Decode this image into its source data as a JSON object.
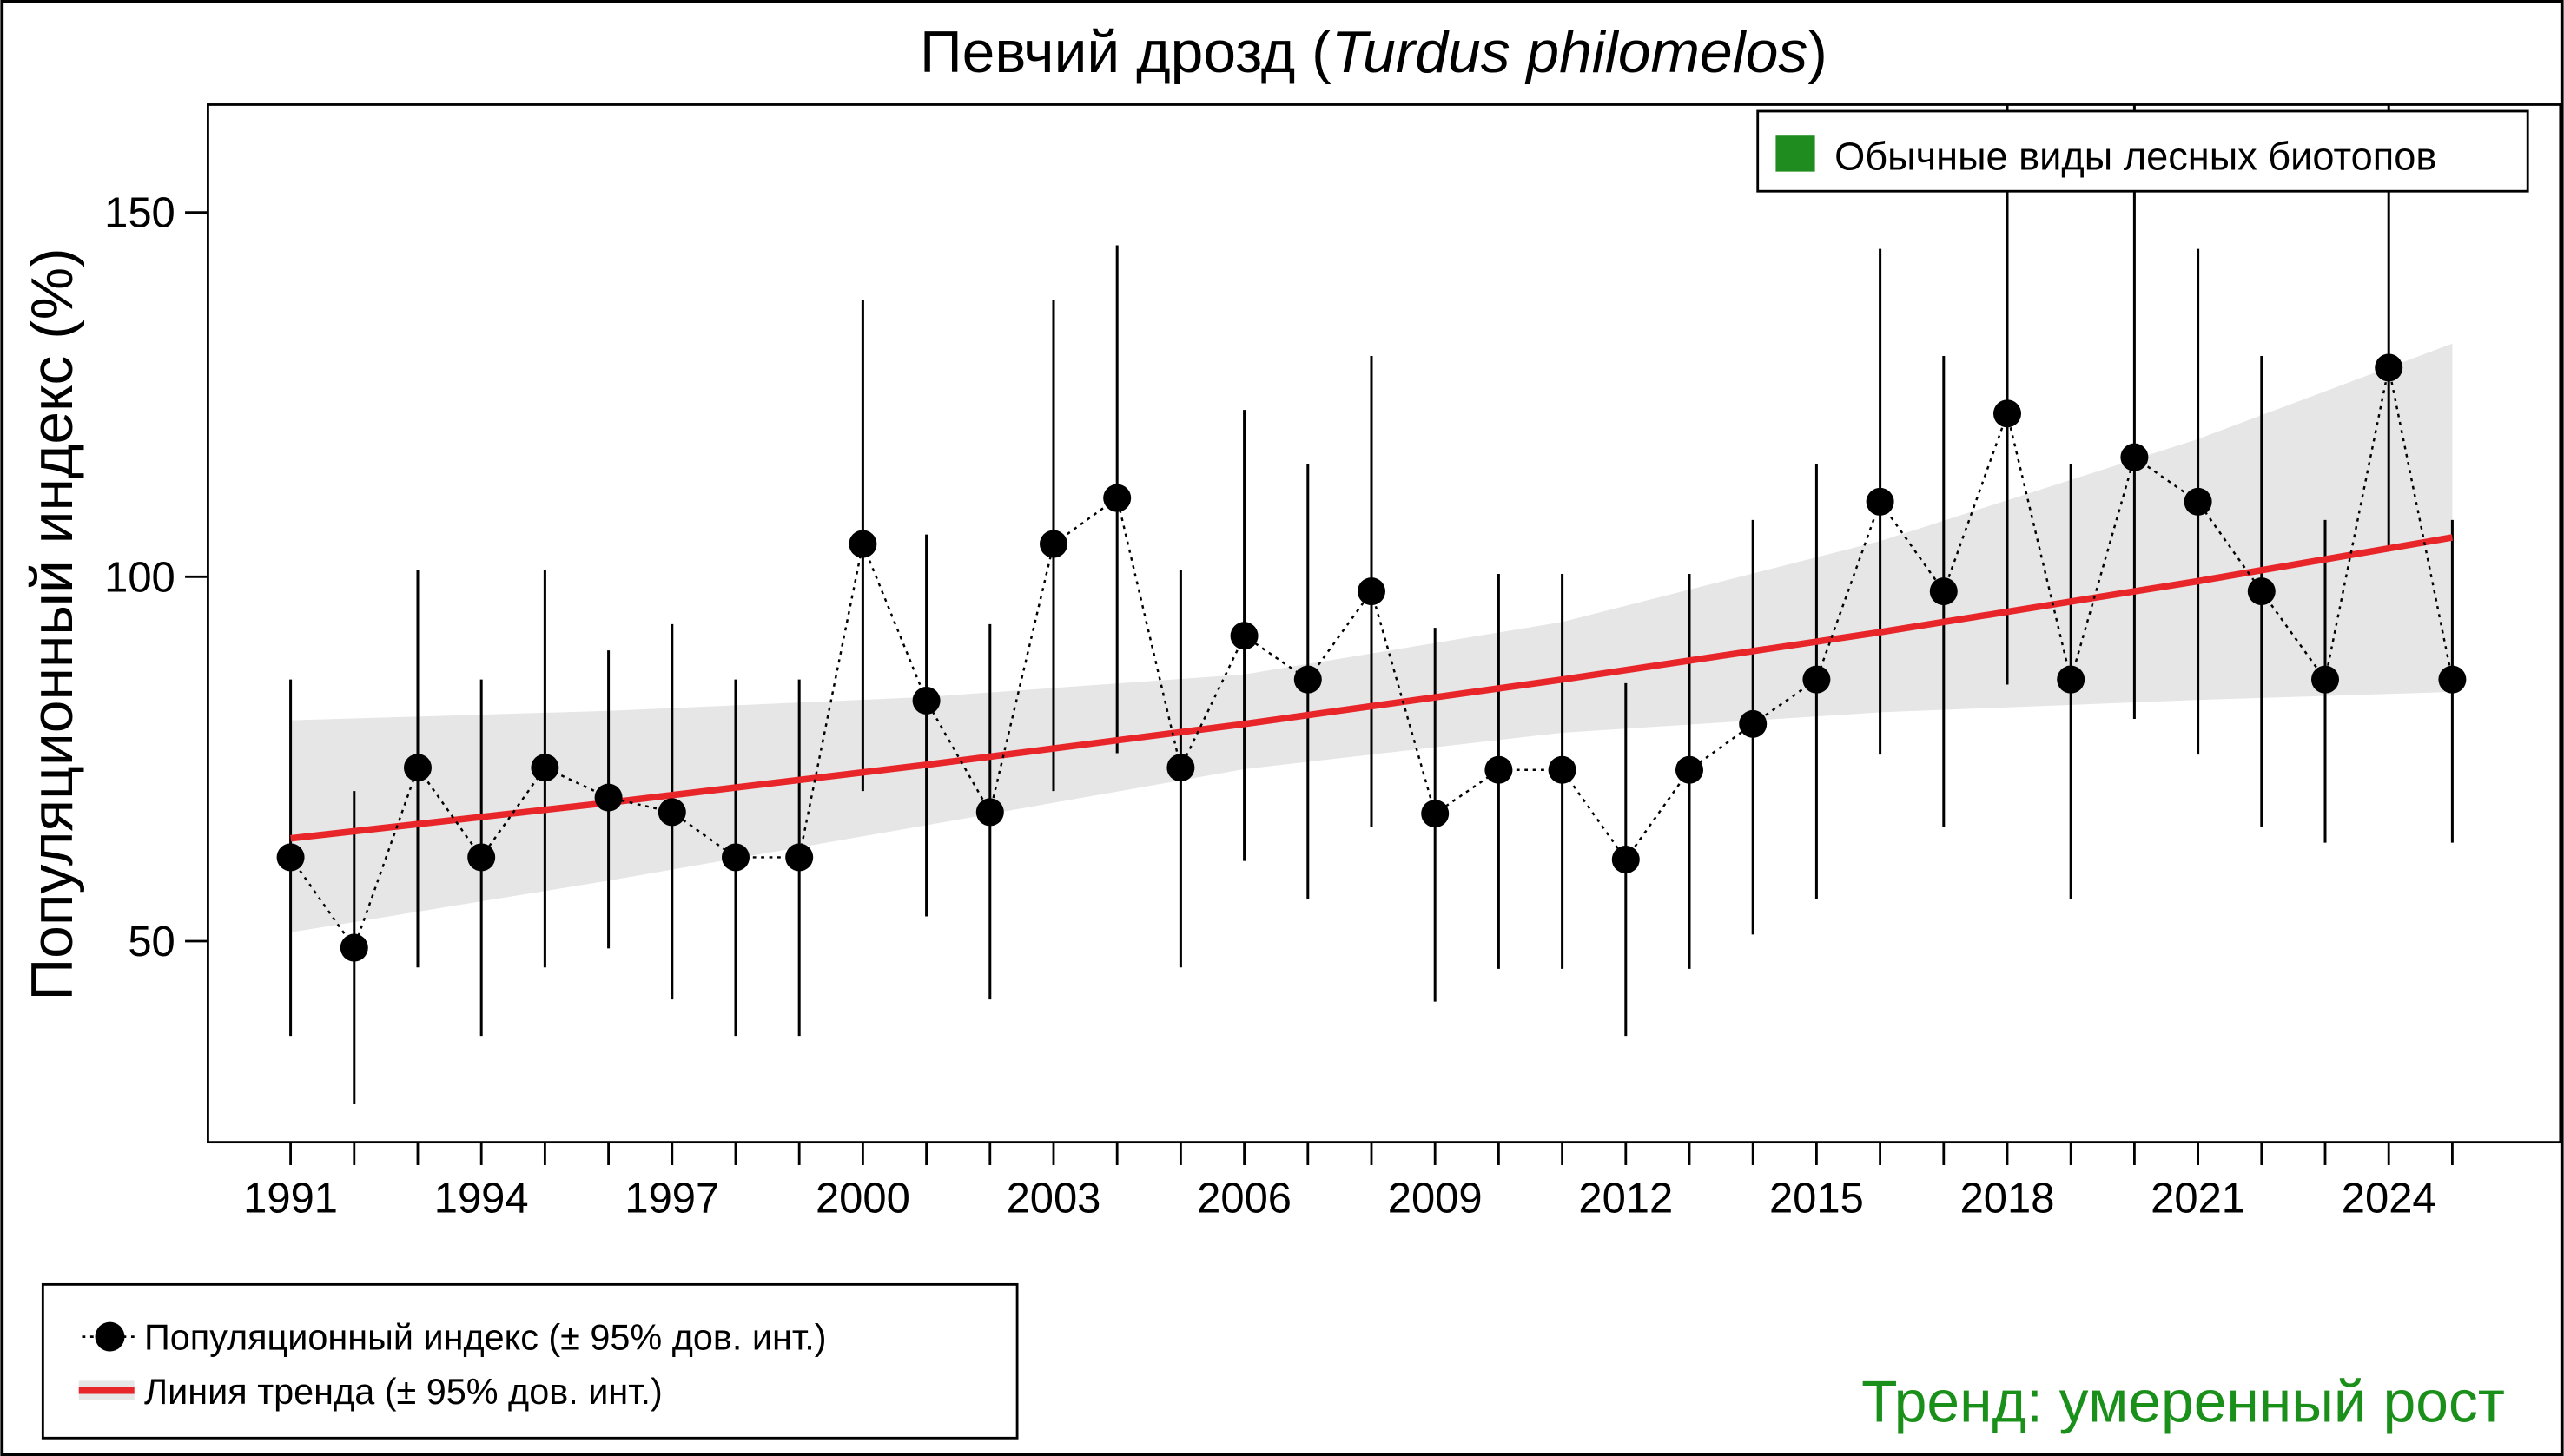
{
  "chart_data": {
    "type": "line",
    "title": "Певчий дрозд (",
    "title_italic": "Turdus philomelos",
    "title_end": ")",
    "ylabel": "Популяционный индекс (%)",
    "xlabel": "",
    "ylim": [
      22.4,
      164.8
    ],
    "xlim": [
      1989.7,
      2026.7
    ],
    "yticks": [
      50,
      100,
      150
    ],
    "xticks": [
      1991,
      1994,
      1997,
      2000,
      2003,
      2006,
      2009,
      2012,
      2015,
      2018,
      2021,
      2024
    ],
    "grid": false,
    "years": [
      1991,
      1992,
      1993,
      1994,
      1995,
      1996,
      1997,
      1998,
      1999,
      2000,
      2001,
      2002,
      2003,
      2004,
      2005,
      2006,
      2007,
      2008,
      2009,
      2010,
      2011,
      2012,
      2013,
      2014,
      2015,
      2016,
      2017,
      2018,
      2019,
      2020,
      2021,
      2022,
      2023,
      2024,
      2025
    ],
    "index": [
      61.5,
      49.1,
      73.8,
      61.5,
      73.8,
      69.7,
      67.7,
      61.5,
      61.5,
      104.5,
      83.0,
      67.7,
      104.5,
      110.8,
      73.8,
      91.9,
      85.9,
      98.0,
      67.5,
      73.5,
      73.5,
      61.2,
      73.5,
      79.8,
      85.9,
      110.3,
      98.0,
      122.4,
      85.9,
      116.4,
      110.3,
      98.0,
      85.9,
      128.7,
      85.9
    ],
    "ci_lower": [
      37,
      27.6,
      46.4,
      37,
      46.4,
      49,
      42,
      37,
      37,
      70.6,
      53.4,
      42,
      70.6,
      75.8,
      46.4,
      61,
      55.8,
      65.7,
      41.7,
      46.2,
      46.2,
      37,
      46.2,
      50.9,
      55.8,
      75.6,
      65.7,
      85.2,
      55.8,
      80.5,
      75.6,
      65.7,
      63.5,
      104.3,
      63.5
    ],
    "ci_upper": [
      85.9,
      70.6,
      100.9,
      85.9,
      100.9,
      89.9,
      93.5,
      85.9,
      85.9,
      138,
      105.8,
      93.5,
      138,
      145.5,
      100.9,
      122.9,
      115.5,
      130.3,
      93,
      100.4,
      100.4,
      85.4,
      100.4,
      107.8,
      115.5,
      145,
      130.3,
      175,
      115.5,
      175,
      145,
      130.3,
      107.8,
      175,
      107.8
    ],
    "trend": {
      "x": [
        1991,
        1996,
        2001,
        2006,
        2011,
        2016,
        2021,
        2025
      ],
      "y": [
        64.1,
        69.0,
        74.2,
        79.8,
        85.9,
        92.4,
        99.4,
        105.4
      ],
      "lower": [
        51.2,
        58.3,
        65.9,
        73.6,
        78.6,
        81.4,
        83.1,
        84.2
      ],
      "upper": [
        80.3,
        81.6,
        83.5,
        86.6,
        93.8,
        104.9,
        118.9,
        132.0
      ]
    },
    "legend_top": {
      "label": "Обычные виды лесных биотопов",
      "color": "#1e8c1e",
      "placement": "top-right"
    },
    "legend_bottom": {
      "placement": "bottom-left",
      "items": [
        {
          "label": "Популяционный индекс (± 95% дов. инт.)"
        },
        {
          "label": "Линия тренда (± 95% дов. инт.)"
        }
      ]
    },
    "annotation": {
      "text": "Тренд: умеренный рост",
      "color": "#1a8f1a"
    },
    "colors": {
      "trend": "#e8262a",
      "band": "#e6e6e6",
      "points": "#000000"
    }
  }
}
